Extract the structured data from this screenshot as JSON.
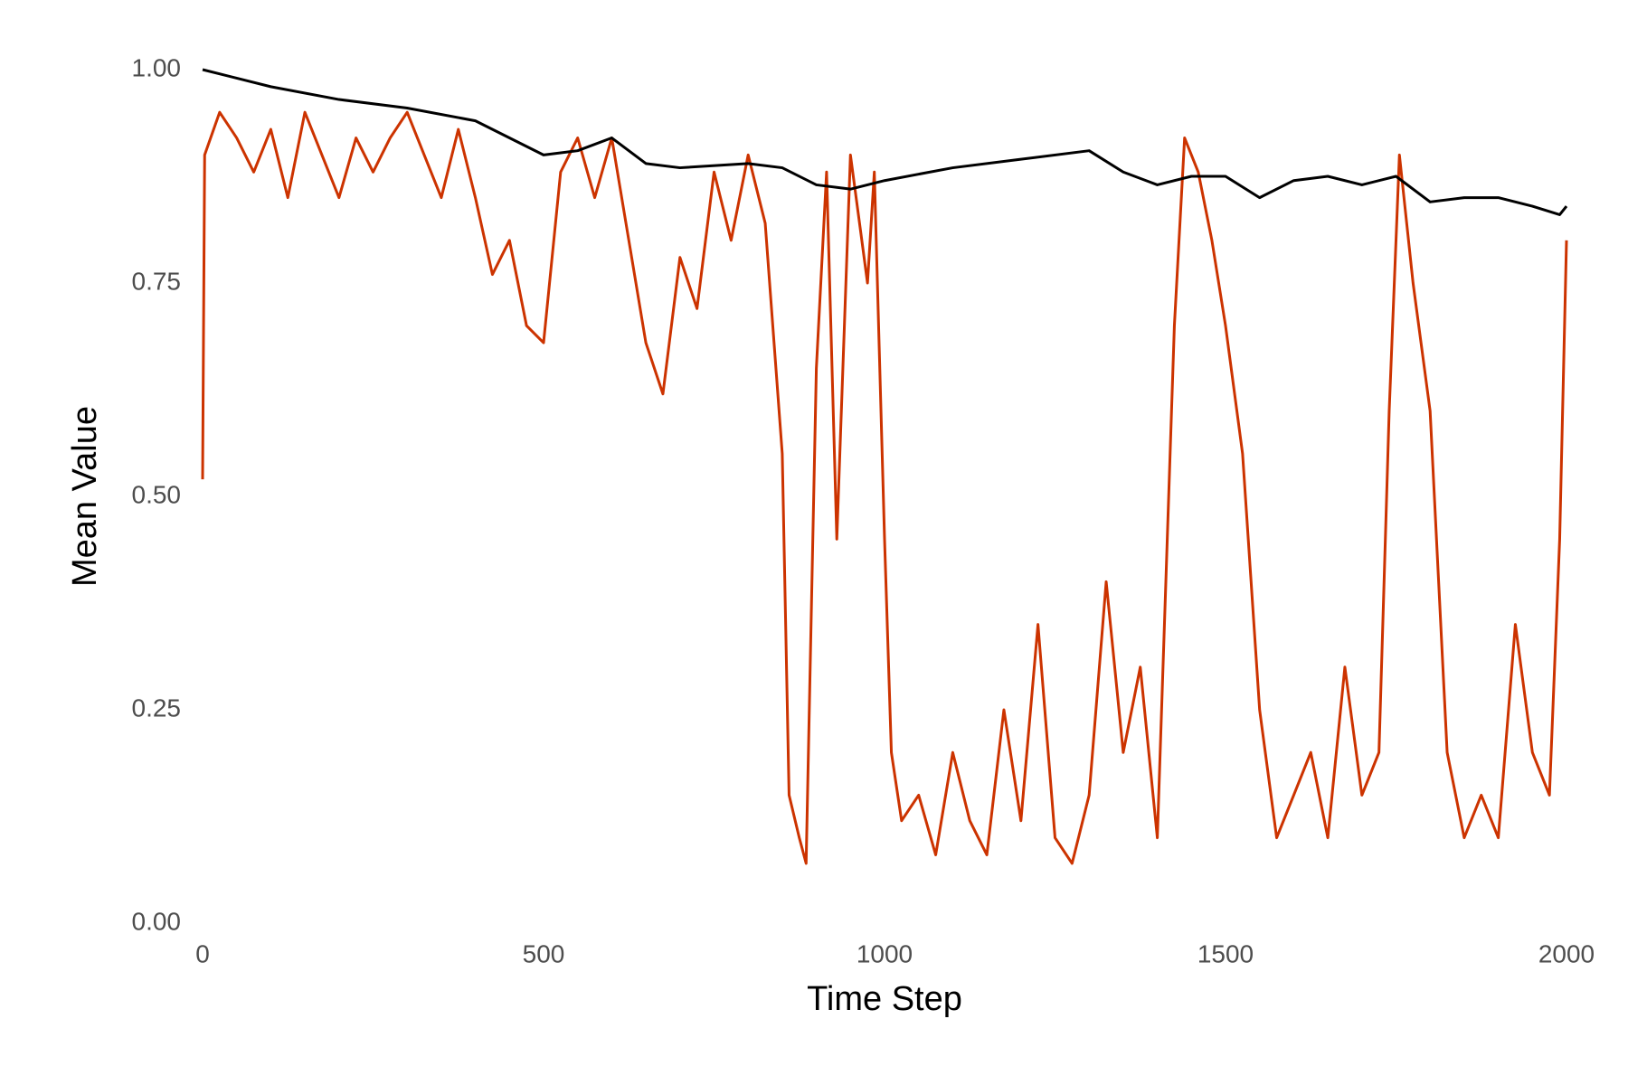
{
  "chart_data": {
    "type": "line",
    "x_label": "Time Step",
    "y_label": "Mean Value",
    "xlim": [
      0,
      2000
    ],
    "ylim": [
      0,
      1
    ],
    "xticks": [
      0,
      500,
      1000,
      1500,
      2000
    ],
    "yticks": [
      {
        "value": 0,
        "label": "0.00"
      },
      {
        "value": 0.25,
        "label": "0.25"
      },
      {
        "value": 0.5,
        "label": "0.50"
      },
      {
        "value": 0.75,
        "label": "0.75"
      },
      {
        "value": 1,
        "label": "1.00"
      }
    ],
    "series": [
      {
        "color": "#cc3300",
        "x": [
          0,
          3,
          25,
          50,
          75,
          100,
          125,
          150,
          175,
          200,
          225,
          250,
          275,
          300,
          325,
          350,
          375,
          400,
          425,
          450,
          475,
          500,
          525,
          550,
          575,
          600,
          625,
          650,
          675,
          700,
          725,
          750,
          775,
          800,
          825,
          850,
          860,
          875,
          885,
          900,
          915,
          930,
          950,
          975,
          985,
          1000,
          1010,
          1025,
          1050,
          1075,
          1100,
          1125,
          1150,
          1175,
          1200,
          1225,
          1250,
          1275,
          1300,
          1325,
          1350,
          1375,
          1400,
          1425,
          1440,
          1460,
          1480,
          1500,
          1525,
          1550,
          1575,
          1600,
          1625,
          1650,
          1675,
          1700,
          1725,
          1740,
          1755,
          1775,
          1800,
          1825,
          1850,
          1875,
          1900,
          1925,
          1950,
          1975,
          1990,
          2000
        ],
        "values": [
          0.52,
          0.9,
          0.95,
          0.92,
          0.88,
          0.93,
          0.85,
          0.95,
          0.9,
          0.85,
          0.92,
          0.88,
          0.92,
          0.95,
          0.9,
          0.85,
          0.93,
          0.85,
          0.76,
          0.8,
          0.7,
          0.68,
          0.88,
          0.92,
          0.85,
          0.92,
          0.8,
          0.68,
          0.62,
          0.78,
          0.72,
          0.88,
          0.8,
          0.9,
          0.82,
          0.55,
          0.15,
          0.1,
          0.07,
          0.65,
          0.88,
          0.45,
          0.9,
          0.75,
          0.88,
          0.45,
          0.2,
          0.12,
          0.15,
          0.08,
          0.2,
          0.12,
          0.08,
          0.25,
          0.12,
          0.35,
          0.1,
          0.07,
          0.15,
          0.4,
          0.2,
          0.3,
          0.1,
          0.7,
          0.92,
          0.88,
          0.8,
          0.7,
          0.55,
          0.25,
          0.1,
          0.15,
          0.2,
          0.1,
          0.3,
          0.15,
          0.2,
          0.6,
          0.9,
          0.75,
          0.6,
          0.2,
          0.1,
          0.15,
          0.1,
          0.35,
          0.2,
          0.15,
          0.45,
          0.8
        ]
      },
      {
        "color": "#000000",
        "x": [
          0,
          100,
          200,
          300,
          400,
          450,
          500,
          550,
          600,
          650,
          700,
          800,
          850,
          900,
          950,
          1000,
          1100,
          1200,
          1300,
          1350,
          1400,
          1450,
          1500,
          1550,
          1600,
          1650,
          1700,
          1750,
          1800,
          1850,
          1900,
          1950,
          1990,
          2000
        ],
        "values": [
          1.0,
          0.98,
          0.965,
          0.955,
          0.94,
          0.92,
          0.9,
          0.905,
          0.92,
          0.89,
          0.885,
          0.89,
          0.885,
          0.865,
          0.86,
          0.87,
          0.885,
          0.895,
          0.905,
          0.88,
          0.865,
          0.875,
          0.875,
          0.85,
          0.87,
          0.875,
          0.865,
          0.875,
          0.845,
          0.85,
          0.85,
          0.84,
          0.83,
          0.84
        ]
      }
    ]
  }
}
